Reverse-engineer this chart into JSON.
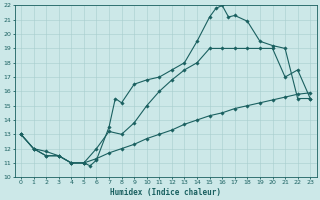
{
  "xlabel": "Humidex (Indice chaleur)",
  "xlim": [
    -0.5,
    23.5
  ],
  "ylim": [
    10,
    22
  ],
  "xticks": [
    0,
    1,
    2,
    3,
    4,
    5,
    6,
    7,
    8,
    9,
    10,
    11,
    12,
    13,
    14,
    15,
    16,
    17,
    18,
    19,
    20,
    21,
    22,
    23
  ],
  "yticks": [
    10,
    11,
    12,
    13,
    14,
    15,
    16,
    17,
    18,
    19,
    20,
    21,
    22
  ],
  "bg_color": "#cce8e8",
  "line_color": "#1a6060",
  "grid_color": "#a8cece",
  "line1_x": [
    0,
    1,
    2,
    3,
    4,
    5,
    5.5,
    6,
    7,
    7.5,
    8,
    9,
    10,
    11,
    12,
    13,
    14,
    15,
    15.5,
    16,
    16.5,
    17,
    18,
    19,
    20,
    21,
    22,
    23
  ],
  "line1_y": [
    13,
    12.0,
    11.8,
    11.5,
    11.0,
    11.0,
    10.8,
    11.2,
    13.5,
    15.5,
    15.2,
    16.5,
    16.8,
    17.0,
    17.5,
    18.0,
    19.5,
    21.2,
    21.8,
    22.0,
    21.2,
    21.3,
    20.9,
    19.5,
    19.2,
    19.0,
    15.5,
    15.5
  ],
  "line2_x": [
    0,
    1,
    2,
    3,
    4,
    5,
    6,
    7,
    8,
    9,
    10,
    11,
    12,
    13,
    14,
    15,
    16,
    17,
    18,
    19,
    20,
    21,
    22,
    23
  ],
  "line2_y": [
    13.0,
    12.0,
    11.5,
    11.5,
    11.0,
    11.0,
    12.0,
    13.2,
    13.0,
    13.8,
    15.0,
    16.0,
    16.8,
    17.5,
    18.0,
    19.0,
    19.0,
    19.0,
    19.0,
    19.0,
    19.0,
    17.0,
    17.5,
    15.5
  ],
  "line3_x": [
    0,
    1,
    2,
    3,
    4,
    5,
    6,
    7,
    8,
    9,
    10,
    11,
    12,
    13,
    14,
    15,
    16,
    17,
    18,
    19,
    20,
    21,
    22,
    23
  ],
  "line3_y": [
    13.0,
    12.0,
    11.5,
    11.5,
    11.0,
    11.0,
    11.3,
    11.7,
    12.0,
    12.3,
    12.7,
    13.0,
    13.3,
    13.7,
    14.0,
    14.3,
    14.5,
    14.8,
    15.0,
    15.2,
    15.4,
    15.6,
    15.8,
    15.9
  ]
}
